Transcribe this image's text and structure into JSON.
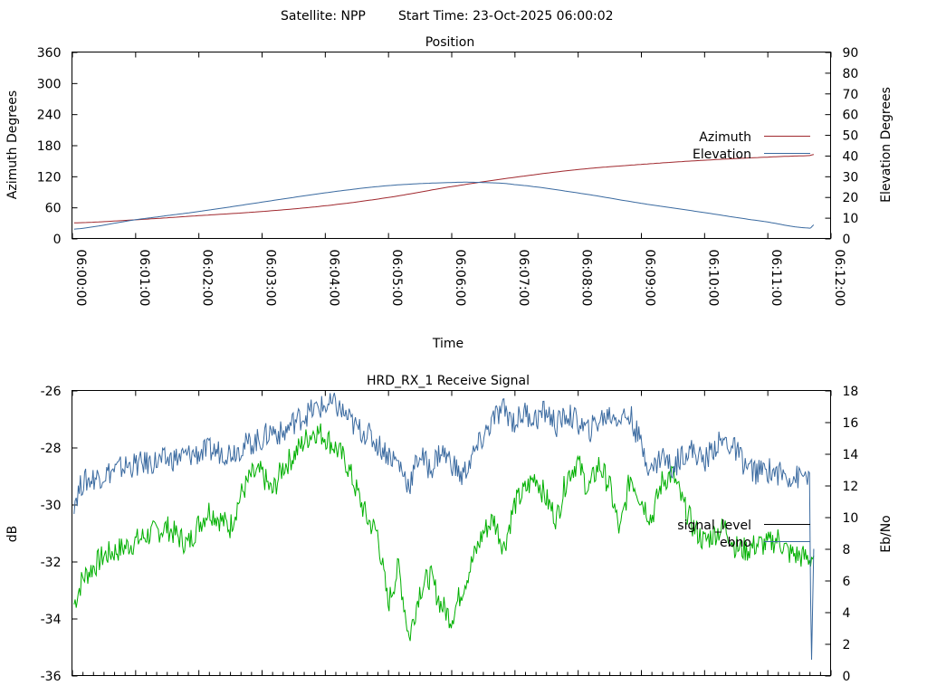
{
  "header": {
    "satellite": "Satellite: NPP",
    "start_time": "Start Time: 23-Oct-2025 06:00:02"
  },
  "chart_data": [
    {
      "type": "line",
      "title": "Position",
      "xlabel": "Time",
      "ylabel": "Azimuth Degrees",
      "y2label": "Elevation Degrees",
      "xlim_seconds": [
        0,
        720
      ],
      "ylim": [
        0,
        360
      ],
      "y2lim": [
        0,
        90
      ],
      "y_ticks": [
        "0",
        "60",
        "120",
        "180",
        "240",
        "300",
        "360"
      ],
      "y2_ticks": [
        "0",
        "10",
        "20",
        "30",
        "40",
        "50",
        "60",
        "70",
        "80",
        "90"
      ],
      "x_ticks": [
        "06:00:00",
        "06:01:00",
        "06:02:00",
        "06:03:00",
        "06:04:00",
        "06:05:00",
        "06:06:00",
        "06:07:00",
        "06:08:00",
        "06:09:00",
        "06:10:00",
        "06:11:00",
        "06:12:00"
      ],
      "legend_position": "right",
      "series": [
        {
          "name": "Azimuth",
          "axis": "y",
          "color": "#a0282e",
          "x": [
            2,
            60,
            120,
            180,
            240,
            300,
            360,
            420,
            480,
            540,
            600,
            660,
            700,
            704
          ],
          "y": [
            30,
            36,
            44,
            52,
            63,
            79,
            100,
            118,
            133,
            143,
            151,
            157,
            160,
            162
          ]
        },
        {
          "name": "Elevation",
          "axis": "y2",
          "color": "#3a6aa0",
          "x": [
            2,
            60,
            120,
            180,
            240,
            300,
            360,
            390,
            420,
            480,
            540,
            600,
            660,
            700,
            704
          ],
          "y": [
            4.5,
            9,
            13,
            17.5,
            22,
            25.5,
            27,
            27,
            26,
            22,
            17,
            12.5,
            8,
            5,
            6.5
          ]
        }
      ]
    },
    {
      "type": "line",
      "title": "HRD_RX_1 Receive Signal",
      "xlabel": "",
      "ylabel": "dB",
      "y2label": "Eb/No",
      "xlim_seconds": [
        0,
        720
      ],
      "ylim": [
        -36,
        -26
      ],
      "y2lim": [
        0,
        18
      ],
      "y_ticks": [
        "-26",
        "-28",
        "-30",
        "-32",
        "-34",
        "-36"
      ],
      "y2_ticks": [
        "0",
        "2",
        "4",
        "6",
        "8",
        "10",
        "12",
        "14",
        "16",
        "18"
      ],
      "legend_position": "right",
      "series": [
        {
          "name": "signal_level",
          "axis": "y",
          "color": "#00b000",
          "legend_color": "#000000",
          "x": [
            2,
            10,
            30,
            50,
            70,
            90,
            110,
            120,
            130,
            150,
            160,
            170,
            180,
            190,
            200,
            210,
            220,
            230,
            240,
            250,
            260,
            270,
            280,
            290,
            300,
            310,
            320,
            330,
            340,
            350,
            360,
            370,
            380,
            390,
            400,
            410,
            420,
            430,
            440,
            450,
            460,
            470,
            480,
            490,
            500,
            510,
            520,
            530,
            540,
            550,
            560,
            570,
            580,
            590,
            600,
            610,
            620,
            630,
            640,
            650,
            660,
            670,
            680,
            690,
            700,
            704
          ],
          "y": [
            -33.5,
            -32.6,
            -31.8,
            -31.5,
            -31.1,
            -30.8,
            -31.4,
            -30.7,
            -30.2,
            -30.8,
            -29.7,
            -29.0,
            -28.9,
            -29.6,
            -28.7,
            -28.3,
            -27.8,
            -27.4,
            -27.6,
            -28.0,
            -28.5,
            -29.5,
            -30.5,
            -31.0,
            -33.5,
            -32.2,
            -34.7,
            -33.0,
            -32.5,
            -33.5,
            -34.0,
            -33.0,
            -32.0,
            -31.0,
            -30.5,
            -31.5,
            -30.0,
            -29.5,
            -29.0,
            -29.8,
            -30.5,
            -29.0,
            -28.5,
            -29.5,
            -28.6,
            -29.3,
            -31.0,
            -29.0,
            -29.8,
            -30.5,
            -29.2,
            -28.9,
            -30.0,
            -30.8,
            -31.3,
            -31.0,
            -30.8,
            -31.5,
            -31.6,
            -31.4,
            -31.4,
            -31.2,
            -31.7,
            -31.8,
            -31.9,
            -31.8
          ]
        },
        {
          "name": "ebno",
          "axis": "y2",
          "color": "#3a6aa0",
          "x": [
            2,
            10,
            30,
            50,
            70,
            90,
            110,
            130,
            150,
            170,
            180,
            190,
            200,
            210,
            220,
            230,
            240,
            250,
            260,
            270,
            280,
            290,
            300,
            310,
            320,
            330,
            340,
            350,
            360,
            370,
            380,
            390,
            400,
            410,
            420,
            430,
            440,
            450,
            460,
            470,
            480,
            490,
            500,
            510,
            520,
            530,
            540,
            550,
            560,
            570,
            580,
            590,
            600,
            610,
            620,
            630,
            640,
            650,
            660,
            670,
            680,
            690,
            700,
            701,
            702,
            704
          ],
          "y": [
            11,
            12.2,
            12.7,
            13.2,
            13.4,
            13.6,
            13.9,
            14.2,
            14.1,
            14.7,
            14.9,
            15.5,
            15.2,
            16.0,
            16.4,
            16.8,
            17.0,
            17.1,
            16.4,
            15.6,
            15.3,
            14.6,
            14.0,
            13.4,
            12.0,
            14.0,
            13.0,
            14.2,
            13.5,
            12.5,
            13.8,
            15.0,
            16.2,
            16.8,
            16.0,
            16.6,
            16.2,
            16.7,
            15.8,
            16.5,
            16.0,
            15.4,
            16.1,
            16.5,
            16.3,
            16.4,
            14.6,
            12.9,
            14.0,
            13.0,
            14.1,
            14.2,
            13.5,
            14.5,
            14.8,
            14.2,
            13.2,
            12.8,
            13.0,
            12.8,
            12.6,
            12.5,
            12.8,
            5,
            1,
            8
          ]
        }
      ]
    }
  ]
}
